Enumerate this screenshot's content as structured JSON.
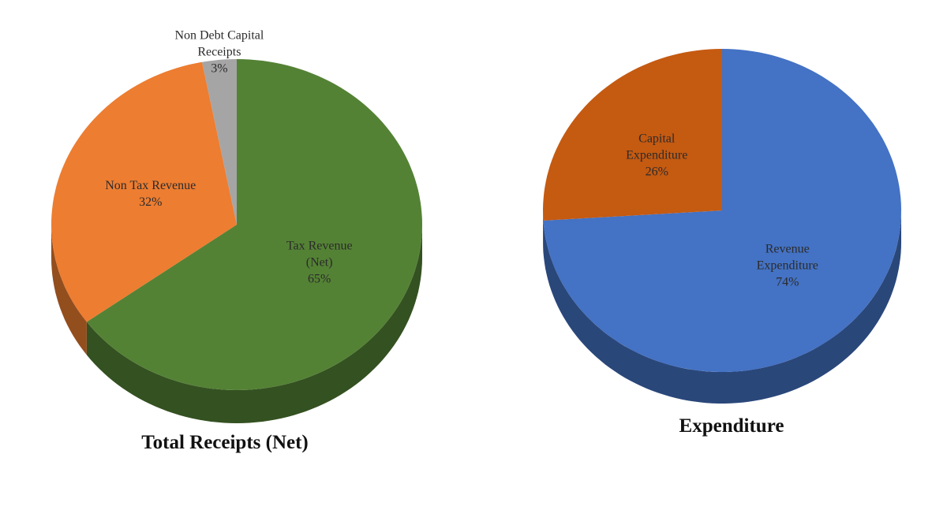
{
  "chart_data": [
    {
      "type": "pie",
      "title": "Total Receipts (Net)",
      "categories": [
        "Tax Revenue (Net)",
        "Non Tax Revenue",
        "Non Debt Capital Receipts"
      ],
      "values": [
        65,
        32,
        3
      ],
      "value_labels": [
        "65%",
        "32%",
        "3%"
      ],
      "colors": [
        "#548235",
        "#ed7d31",
        "#a5a5a5"
      ]
    },
    {
      "type": "pie",
      "title": "Expenditure",
      "categories": [
        "Revenue Expenditure",
        "Capital Expenditure"
      ],
      "values": [
        74,
        26
      ],
      "value_labels": [
        "74%",
        "26%"
      ],
      "colors": [
        "#4472c4",
        "#c55a11"
      ]
    }
  ]
}
